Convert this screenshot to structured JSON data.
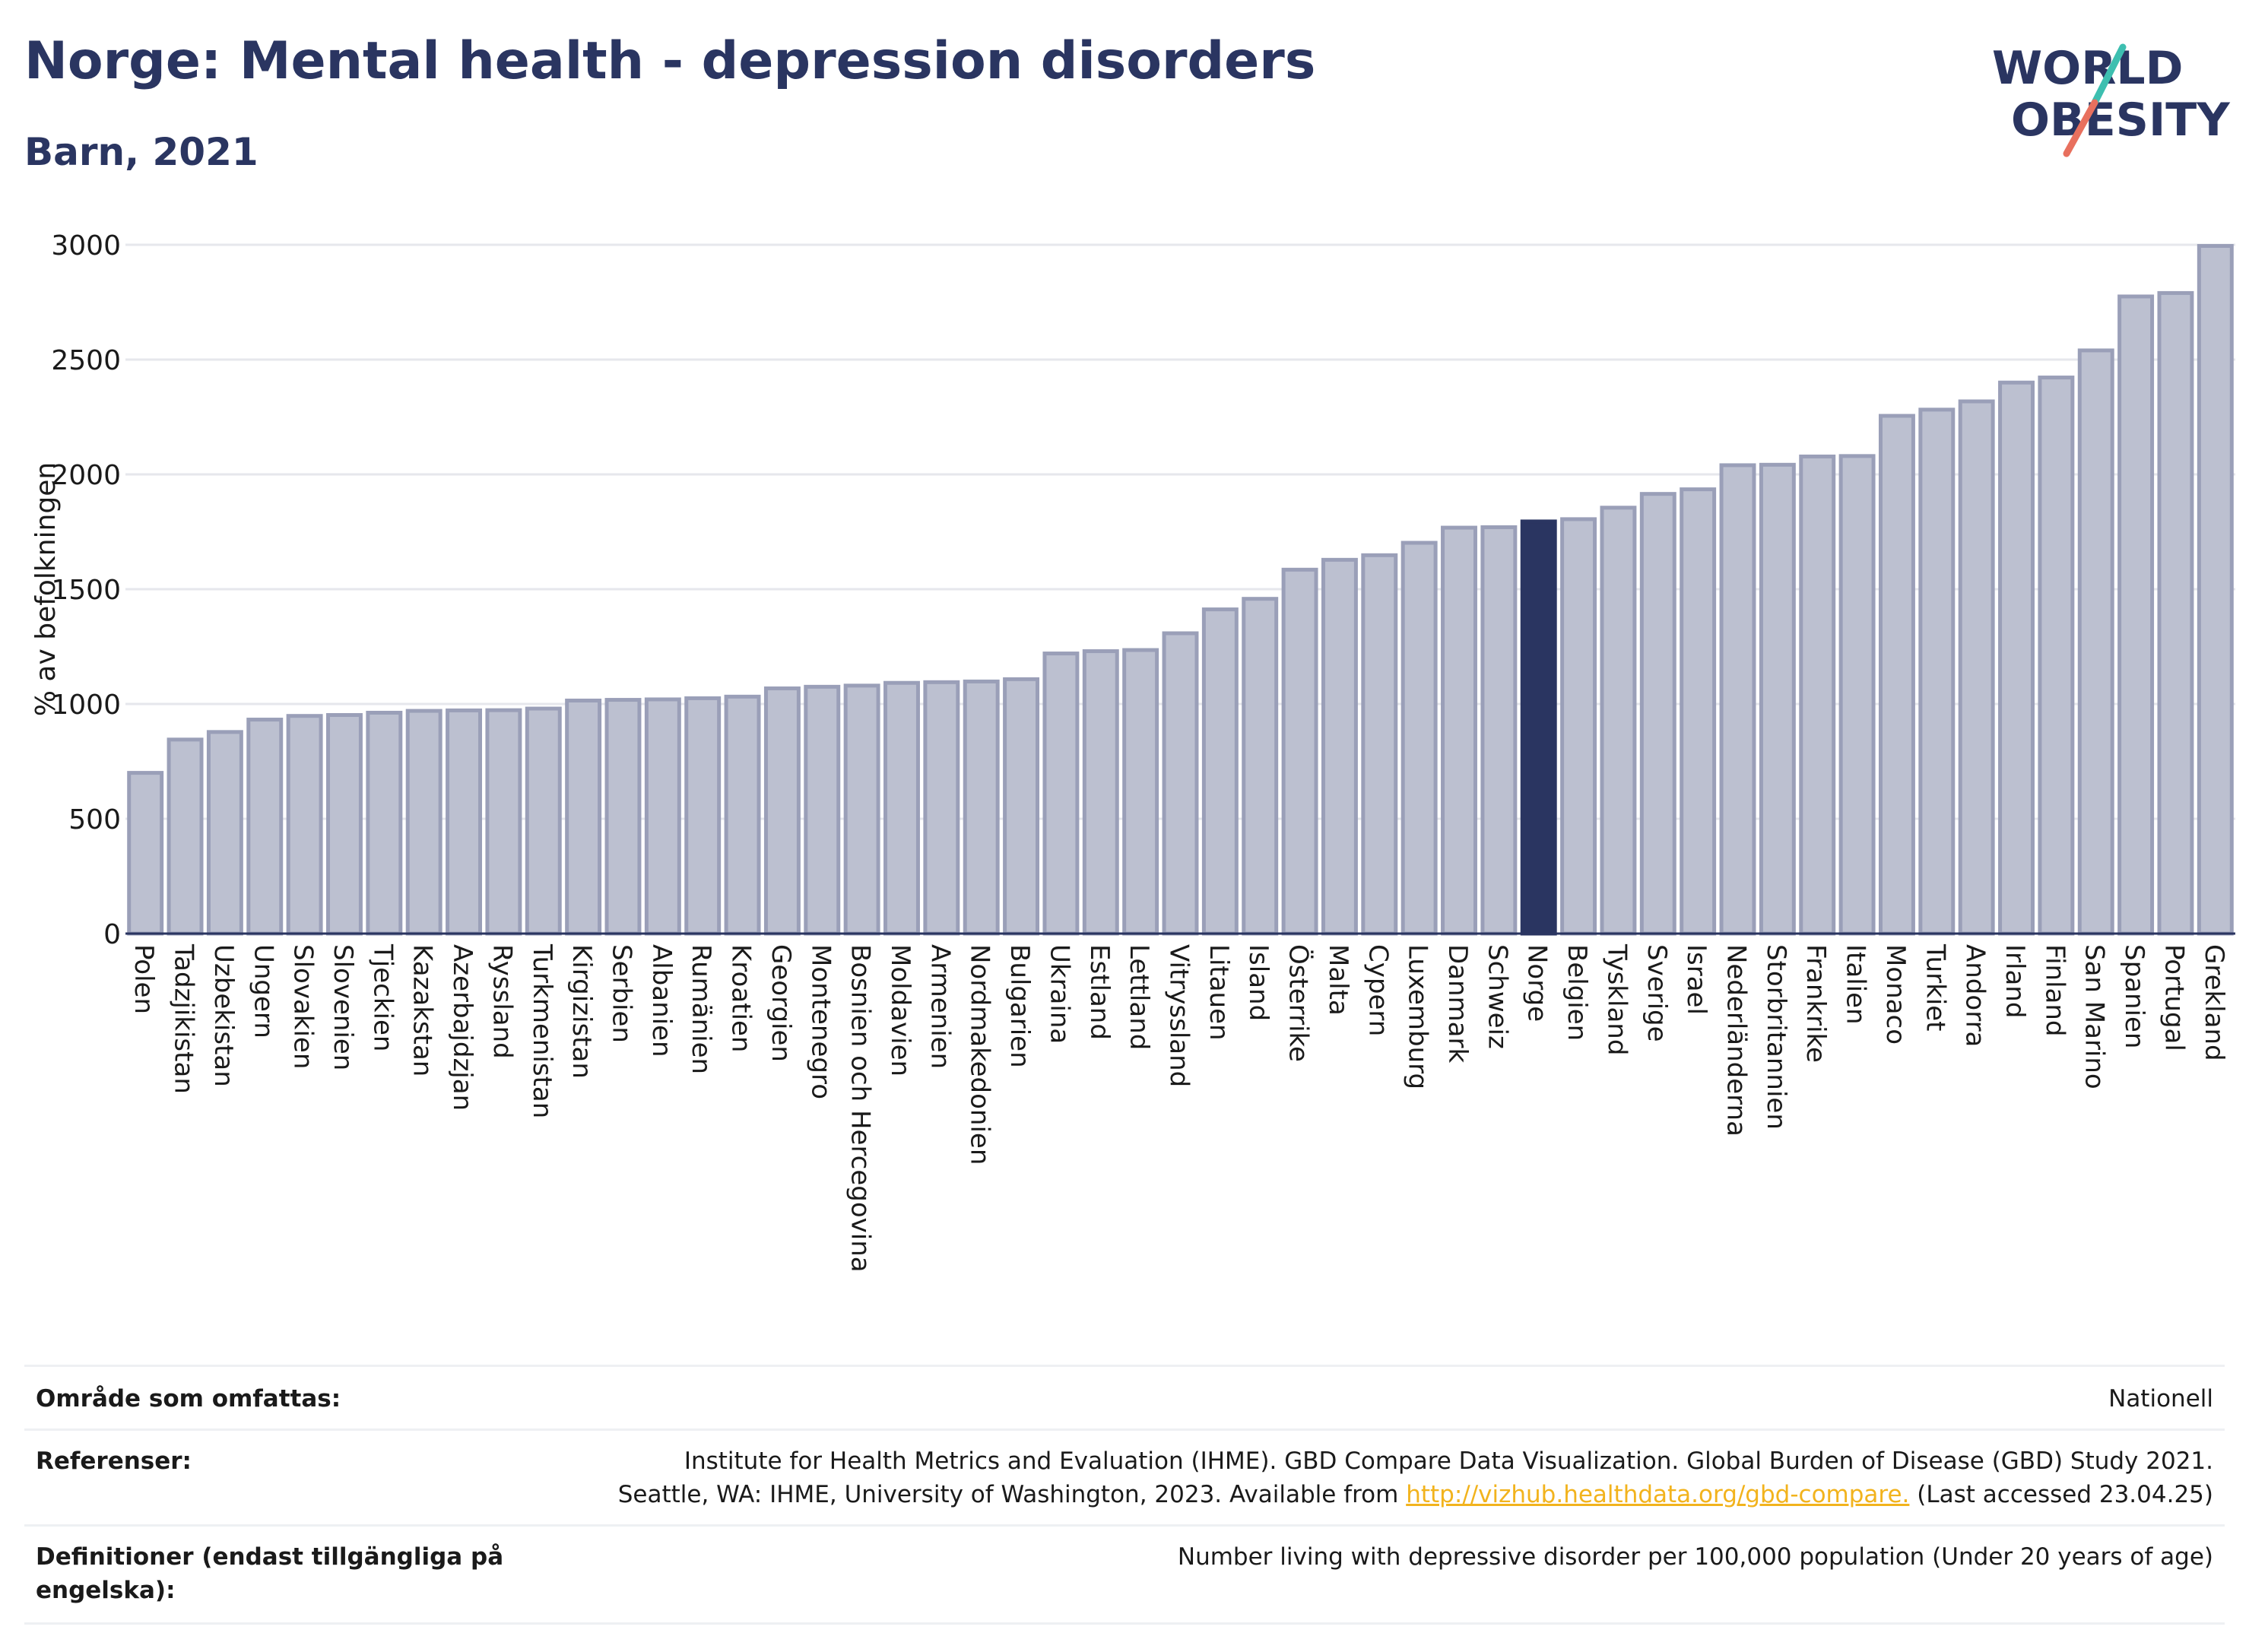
{
  "header": {
    "title": "Norge: Mental health - depression disorders",
    "subtitle": "Barn, 2021"
  },
  "logo": {
    "line1": "WORLD",
    "line2": "OBESITY",
    "accent_teal": "#3dbfb0",
    "accent_coral": "#e8705e",
    "text_color": "#2a3561"
  },
  "chart_data": {
    "type": "bar",
    "ylabel": "% av befolkningen",
    "ylim": [
      0,
      3000
    ],
    "yticks": [
      0,
      500,
      1000,
      1500,
      2000,
      2500,
      3000
    ],
    "grid": true,
    "highlight": "Norge",
    "colors": {
      "bar": "#bcc0d0",
      "bar_border": "#9a9fb8",
      "highlight": "#2a3561",
      "grid": "#e6e7ec",
      "axis": "#2a3561"
    },
    "categories": [
      "Polen",
      "Tadzjikistan",
      "Uzbekistan",
      "Ungern",
      "Slovakien",
      "Slovenien",
      "Tjeckien",
      "Kazakstan",
      "Azerbajdzjan",
      "Ryssland",
      "Turkmenistan",
      "Kirgizistan",
      "Serbien",
      "Albanien",
      "Rumänien",
      "Kroatien",
      "Georgien",
      "Montenegro",
      "Bosnien och Hercegovina",
      "Moldavien",
      "Armenien",
      "Nordmakedonien",
      "Bulgarien",
      "Ukraina",
      "Estland",
      "Lettland",
      "Vitryssland",
      "Litauen",
      "Island",
      "Österrike",
      "Malta",
      "Cypern",
      "Luxemburg",
      "Danmark",
      "Schweiz",
      "Norge",
      "Belgien",
      "Tyskland",
      "Sverige",
      "Israel",
      "Nederländerna",
      "Storbritannien",
      "Frankrike",
      "Italien",
      "Monaco",
      "Turkiet",
      "Andorra",
      "Irland",
      "Finland",
      "San Marino",
      "Spanien",
      "Portugal",
      "Grekland"
    ],
    "values": [
      700,
      845,
      878,
      932,
      948,
      952,
      962,
      970,
      972,
      973,
      980,
      1015,
      1018,
      1020,
      1025,
      1032,
      1068,
      1075,
      1080,
      1092,
      1095,
      1098,
      1108,
      1220,
      1230,
      1235,
      1308,
      1412,
      1458,
      1585,
      1628,
      1648,
      1702,
      1768,
      1770,
      1795,
      1805,
      1855,
      1915,
      1935,
      2040,
      2042,
      2078,
      2080,
      2255,
      2282,
      2318,
      2400,
      2422,
      2540,
      2775,
      2790,
      2995
    ]
  },
  "meta": {
    "coverage_label": "Område som omfattas:",
    "coverage_value": "Nationell",
    "references_label": "Referenser:",
    "references_line1": "Institute for Health Metrics and Evaluation (IHME). GBD Compare Data Visualization. Global Burden of Disease (GBD) Study 2021.",
    "references_line2_pre": "Seattle, WA: IHME, University of Washington, 2023. Available from ",
    "references_link": "http://vizhub.healthdata.org/gbd-compare.",
    "references_line2_post": " (Last accessed 23.04.25)",
    "definitions_label_line1": "Definitioner (endast tillgängliga på",
    "definitions_label_line2": "engelska):",
    "definitions_value": "Number living with depressive disorder per 100,000 population (Under 20 years of age)"
  }
}
